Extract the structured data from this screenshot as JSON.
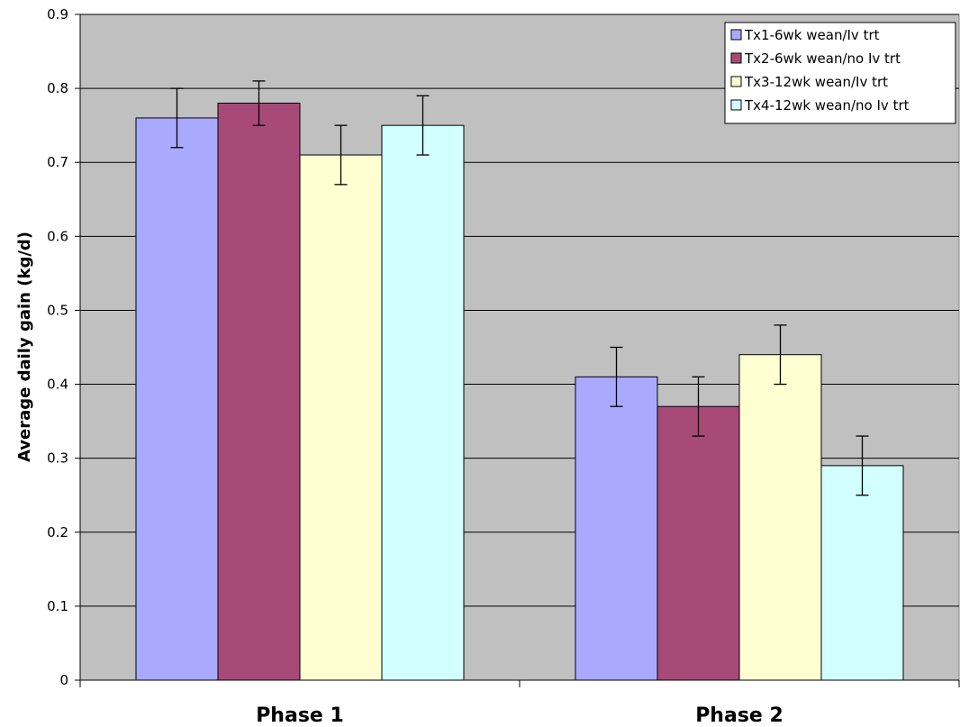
{
  "chart_data": {
    "type": "bar",
    "title": "",
    "xlabel": "",
    "ylabel": "Average daily gain (kg/d)",
    "ylim": [
      0,
      0.9
    ],
    "y_ticks": [
      "0",
      "0.1",
      "0.2",
      "0.3",
      "0.4",
      "0.5",
      "0.6",
      "0.7",
      "0.8",
      "0.9"
    ],
    "categories": [
      "Phase 1",
      "Phase 2"
    ],
    "series": [
      {
        "name": "Tx1-6wk wean/Iv trt",
        "color": "#a9aaff",
        "values": [
          0.76,
          0.41
        ],
        "errors": [
          0.04,
          0.04
        ]
      },
      {
        "name": "Tx2-6wk wean/no Iv trt",
        "color": "#a84a78",
        "values": [
          0.78,
          0.37
        ],
        "errors": [
          0.03,
          0.04
        ]
      },
      {
        "name": "Tx3-12wk wean/Iv trt",
        "color": "#ffffd2",
        "values": [
          0.71,
          0.44
        ],
        "errors": [
          0.04,
          0.04
        ]
      },
      {
        "name": "Tx4-12wk wean/no Iv trt",
        "color": "#d2ffff",
        "values": [
          0.75,
          0.29
        ],
        "errors": [
          0.04,
          0.04
        ]
      }
    ],
    "plot_background": "#c0c0c0",
    "grid": true,
    "legend_position": "top-right",
    "error_bars": true
  }
}
